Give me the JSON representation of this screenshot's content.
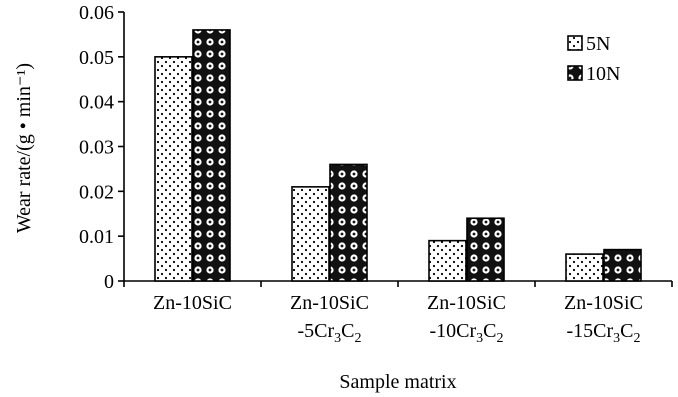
{
  "chart_data": {
    "type": "bar",
    "ylabel": "Wear rate/(g • min⁻¹)",
    "xlabel": "Sample matrix",
    "ylim": [
      0,
      0.06
    ],
    "yticks": [
      "0",
      "0.01",
      "0.02",
      "0.03",
      "0.04",
      "0.05",
      "0.06"
    ],
    "ytick_values": [
      0,
      0.01,
      0.02,
      0.03,
      0.04,
      0.05,
      0.06
    ],
    "categories": [
      {
        "line1": "Zn-10SiC",
        "line2": null
      },
      {
        "line1": "Zn-10SiC",
        "line2": {
          "pre": "-5Cr",
          "sub1": "3",
          "mid": "C",
          "sub2": "2"
        }
      },
      {
        "line1": "Zn-10SiC",
        "line2": {
          "pre": "-10Cr",
          "sub1": "3",
          "mid": "C",
          "sub2": "2"
        }
      },
      {
        "line1": "Zn-10SiC",
        "line2": {
          "pre": "-15Cr",
          "sub1": "3",
          "mid": "C",
          "sub2": "2"
        }
      }
    ],
    "series": [
      {
        "name": "5N",
        "values": [
          0.05,
          0.021,
          0.009,
          0.006
        ],
        "pattern": "dots"
      },
      {
        "name": "10N",
        "values": [
          0.056,
          0.026,
          0.014,
          0.007
        ],
        "pattern": "circles"
      }
    ],
    "grid": false,
    "legend": "top-right"
  }
}
